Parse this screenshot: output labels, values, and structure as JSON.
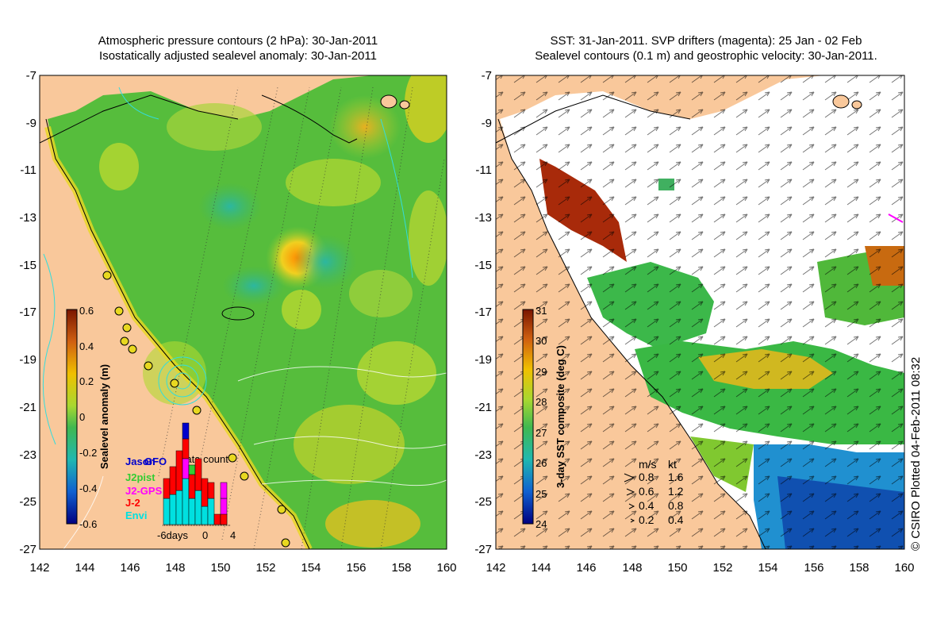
{
  "left_panel": {
    "title_line1": "Atmospheric pressure contours (2 hPa): 30-Jan-2011",
    "title_line2": "Isostatically adjusted sealevel anomaly: 30-Jan-2011",
    "y_ticks": [
      "-7",
      "-9",
      "-11",
      "-13",
      "-15",
      "-17",
      "-19",
      "-21",
      "-23",
      "-25",
      "-27"
    ],
    "x_ticks": [
      "142",
      "144",
      "146",
      "148",
      "150",
      "152",
      "154",
      "156",
      "158",
      "160"
    ],
    "colorbar": {
      "label": "Sealevel anomaly (m)",
      "ticks": [
        "0.6",
        "0.4",
        "0.2",
        "0",
        "-0.2",
        "-0.4",
        "-0.6"
      ],
      "range": [
        -0.6,
        0.6
      ]
    },
    "inset": {
      "title": "Data count",
      "legend": [
        {
          "label": "Jason",
          "color": "#0000cc"
        },
        {
          "label": "GFO",
          "color": "#0000cc"
        },
        {
          "label": "J2pist",
          "color": "#33cc33"
        },
        {
          "label": "J2-GPS",
          "color": "#ff00ff"
        },
        {
          "label": "J-2",
          "color": "#ff0000"
        },
        {
          "label": "Envi",
          "color": "#00e0e0"
        }
      ],
      "x_ticks": [
        "-6days",
        "0",
        "4"
      ]
    }
  },
  "right_panel": {
    "title_line1": "SST: 31-Jan-2011. SVP drifters (magenta): 25 Jan - 02 Feb",
    "title_line2": "Sealevel contours (0.1 m) and geostrophic velocity: 30-Jan-2011.",
    "y_ticks": [
      "-7",
      "-9",
      "-11",
      "-13",
      "-15",
      "-17",
      "-19",
      "-21",
      "-23",
      "-25",
      "-27"
    ],
    "x_ticks": [
      "142",
      "144",
      "146",
      "148",
      "150",
      "152",
      "154",
      "156",
      "158",
      "160"
    ],
    "colorbar": {
      "label": "3-day SST composite (deg C)",
      "ticks": [
        "31",
        "30",
        "29",
        "28",
        "27",
        "26",
        "25",
        "24"
      ],
      "range": [
        24,
        31
      ]
    },
    "velocity_key": {
      "header_ms": "m/s",
      "header_kt": "kt",
      "rows": [
        {
          "ms": "0.8",
          "kt": "1.6"
        },
        {
          "ms": "0.6",
          "kt": "1.2"
        },
        {
          "ms": "0.4",
          "kt": "0.8"
        },
        {
          "ms": "0.2",
          "kt": "0.4"
        }
      ]
    }
  },
  "credit": "© CSIRO Plotted 04-Feb-2011 08:32",
  "colors": {
    "land": "#f9c89b",
    "sea_green": "#5cc13a",
    "sea_yellow": "#d9d920",
    "contour_cyan": "#33dddd"
  }
}
